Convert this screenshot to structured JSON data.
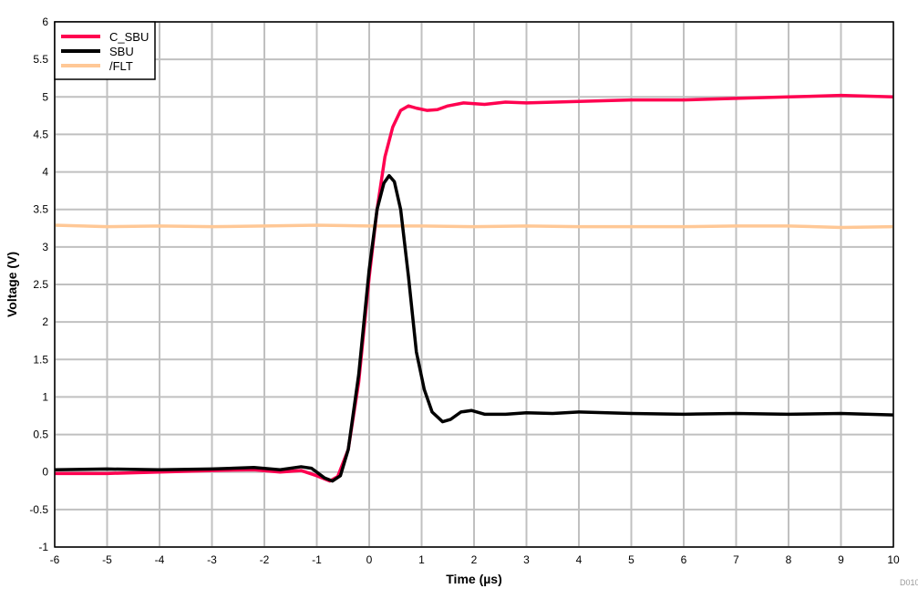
{
  "chart_data": {
    "type": "line",
    "title": "",
    "xlabel": "Time (µs)",
    "ylabel": "Voltage (V)",
    "xlim": [
      -6,
      10
    ],
    "ylim": [
      -1,
      6
    ],
    "xticks": [
      -6,
      -5,
      -4,
      -3,
      -2,
      -1,
      0,
      1,
      2,
      3,
      4,
      5,
      6,
      7,
      8,
      9,
      10
    ],
    "yticks": [
      -1,
      -0.5,
      0,
      0.5,
      1,
      1.5,
      2,
      2.5,
      3,
      3.5,
      4,
      4.5,
      5,
      5.5,
      6
    ],
    "grid": true,
    "legend_position": "top-left",
    "watermark": "D010",
    "series": [
      {
        "name": "C_SBU",
        "color": "#FF0050",
        "points": [
          [
            -6,
            -0.02
          ],
          [
            -5,
            -0.02
          ],
          [
            -4,
            0.0
          ],
          [
            -3,
            0.02
          ],
          [
            -2.2,
            0.03
          ],
          [
            -1.7,
            0.0
          ],
          [
            -1.3,
            0.02
          ],
          [
            -1,
            -0.05
          ],
          [
            -0.75,
            -0.12
          ],
          [
            -0.6,
            -0.06
          ],
          [
            -0.4,
            0.3
          ],
          [
            -0.2,
            1.2
          ],
          [
            0,
            2.6
          ],
          [
            0.15,
            3.5
          ],
          [
            0.3,
            4.2
          ],
          [
            0.45,
            4.6
          ],
          [
            0.6,
            4.82
          ],
          [
            0.75,
            4.88
          ],
          [
            0.9,
            4.85
          ],
          [
            1.1,
            4.82
          ],
          [
            1.3,
            4.83
          ],
          [
            1.5,
            4.88
          ],
          [
            1.8,
            4.92
          ],
          [
            2.2,
            4.9
          ],
          [
            2.6,
            4.93
          ],
          [
            3,
            4.92
          ],
          [
            4,
            4.94
          ],
          [
            5,
            4.96
          ],
          [
            6,
            4.96
          ],
          [
            7,
            4.98
          ],
          [
            8,
            5.0
          ],
          [
            9,
            5.02
          ],
          [
            10,
            5.0
          ]
        ]
      },
      {
        "name": "SBU",
        "color": "#000000",
        "points": [
          [
            -6,
            0.03
          ],
          [
            -5,
            0.04
          ],
          [
            -4,
            0.03
          ],
          [
            -3,
            0.04
          ],
          [
            -2.2,
            0.06
          ],
          [
            -1.7,
            0.03
          ],
          [
            -1.3,
            0.07
          ],
          [
            -1.1,
            0.05
          ],
          [
            -0.85,
            -0.08
          ],
          [
            -0.7,
            -0.12
          ],
          [
            -0.55,
            -0.05
          ],
          [
            -0.4,
            0.3
          ],
          [
            -0.2,
            1.3
          ],
          [
            0,
            2.7
          ],
          [
            0.15,
            3.5
          ],
          [
            0.28,
            3.85
          ],
          [
            0.38,
            3.95
          ],
          [
            0.48,
            3.87
          ],
          [
            0.6,
            3.5
          ],
          [
            0.75,
            2.6
          ],
          [
            0.9,
            1.6
          ],
          [
            1.05,
            1.1
          ],
          [
            1.2,
            0.8
          ],
          [
            1.4,
            0.67
          ],
          [
            1.55,
            0.7
          ],
          [
            1.75,
            0.8
          ],
          [
            1.95,
            0.82
          ],
          [
            2.2,
            0.77
          ],
          [
            2.6,
            0.77
          ],
          [
            3,
            0.79
          ],
          [
            3.5,
            0.78
          ],
          [
            4,
            0.8
          ],
          [
            5,
            0.78
          ],
          [
            6,
            0.77
          ],
          [
            7,
            0.78
          ],
          [
            8,
            0.77
          ],
          [
            9,
            0.78
          ],
          [
            10,
            0.76
          ]
        ]
      },
      {
        "name": "/FLT",
        "color": "#FFC896",
        "points": [
          [
            -6,
            3.29
          ],
          [
            -5,
            3.27
          ],
          [
            -4,
            3.28
          ],
          [
            -3,
            3.27
          ],
          [
            -2,
            3.28
          ],
          [
            -1,
            3.29
          ],
          [
            0,
            3.28
          ],
          [
            1,
            3.28
          ],
          [
            2,
            3.27
          ],
          [
            3,
            3.28
          ],
          [
            4,
            3.27
          ],
          [
            5,
            3.27
          ],
          [
            6,
            3.27
          ],
          [
            7,
            3.28
          ],
          [
            8,
            3.28
          ],
          [
            9,
            3.26
          ],
          [
            10,
            3.27
          ]
        ]
      }
    ]
  }
}
